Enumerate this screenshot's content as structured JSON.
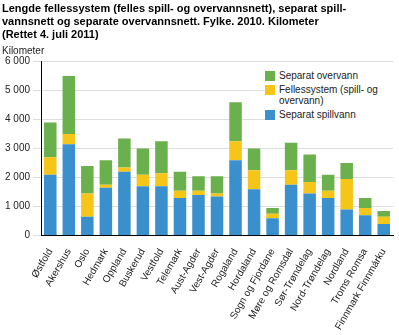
{
  "chart_data": {
    "type": "bar",
    "stacked": true,
    "title": [
      "Lengde fellessystem (felles spill- og overvannsnett), separat spill-",
      "vannsnett og separate overvannsnett. Fylke. 2010. Kilometer",
      "(Rettet 4. juli 2011)"
    ],
    "y_label": "Kilometer",
    "categories": [
      "Østfold",
      "Akershus",
      "Oslo",
      "Hedmark",
      "Oppland",
      "Buskerud",
      "Vestfold",
      "Telemark",
      "Aust-Agder",
      "Vest-Agder",
      "Rogaland",
      "Hordaland",
      "Sogn og Fjordane",
      "Møre og Romsdal",
      "Sør-Trøndelag",
      "Nord-Trøndelag",
      "Nordland",
      "Troms Romsa",
      "Finnmark Finnmárku"
    ],
    "series": [
      {
        "name": "Separat spillvann",
        "color": "#3a8fcd",
        "values": [
          2100,
          3150,
          650,
          1650,
          2200,
          1700,
          1700,
          1300,
          1400,
          1350,
          2600,
          1600,
          600,
          1750,
          1450,
          1300,
          900,
          700,
          400
        ]
      },
      {
        "name": "Fellessystem (spill- og overvann)",
        "color": "#f5c518",
        "values": [
          600,
          350,
          800,
          100,
          150,
          400,
          450,
          250,
          150,
          100,
          650,
          650,
          150,
          500,
          400,
          250,
          1050,
          250,
          250
        ]
      },
      {
        "name": "Separat overvann",
        "color": "#6ab04c",
        "values": [
          1200,
          2000,
          950,
          850,
          1000,
          900,
          1100,
          650,
          500,
          600,
          1350,
          750,
          200,
          950,
          950,
          550,
          550,
          350,
          200
        ]
      }
    ],
    "ylim": [
      0,
      6000
    ],
    "yticks": [
      0,
      {
        "value": 1000,
        "label": "1 000"
      },
      {
        "value": 2000,
        "label": "2 000"
      },
      {
        "value": 3000,
        "label": "3 000"
      },
      {
        "value": 4000,
        "label": "4 000"
      },
      {
        "value": 5000,
        "label": "5 000"
      },
      {
        "value": 6000,
        "label": "6 000"
      }
    ],
    "grid": true,
    "legend": "upper right"
  }
}
